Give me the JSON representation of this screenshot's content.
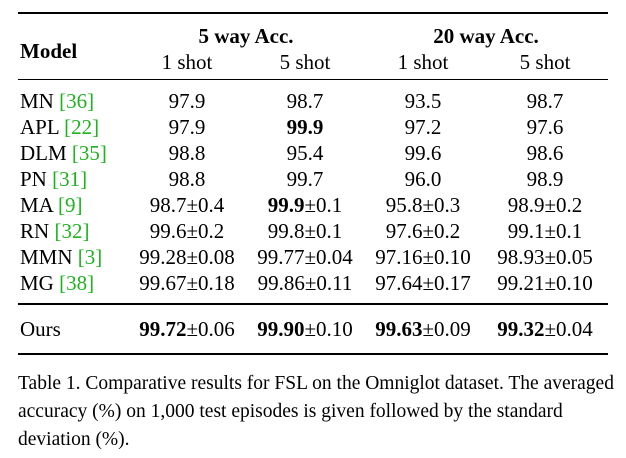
{
  "table": {
    "header": {
      "model": "Model",
      "group1": "5 way Acc.",
      "group2": "20 way Acc.",
      "subcols": [
        "1 shot",
        "5 shot",
        "1 shot",
        "5 shot"
      ]
    },
    "rows": [
      {
        "name": "MN",
        "ref": "36",
        "cells": [
          {
            "main": "97.9",
            "pm": "",
            "bold": false
          },
          {
            "main": "98.7",
            "pm": "",
            "bold": false
          },
          {
            "main": "93.5",
            "pm": "",
            "bold": false
          },
          {
            "main": "98.7",
            "pm": "",
            "bold": false
          }
        ]
      },
      {
        "name": "APL",
        "ref": "22",
        "cells": [
          {
            "main": "97.9",
            "pm": "",
            "bold": false
          },
          {
            "main": "99.9",
            "pm": "",
            "bold": true
          },
          {
            "main": "97.2",
            "pm": "",
            "bold": false
          },
          {
            "main": "97.6",
            "pm": "",
            "bold": false
          }
        ]
      },
      {
        "name": "DLM",
        "ref": "35",
        "cells": [
          {
            "main": "98.8",
            "pm": "",
            "bold": false
          },
          {
            "main": "95.4",
            "pm": "",
            "bold": false
          },
          {
            "main": "99.6",
            "pm": "",
            "bold": false
          },
          {
            "main": "98.6",
            "pm": "",
            "bold": false
          }
        ]
      },
      {
        "name": "PN",
        "ref": "31",
        "cells": [
          {
            "main": "98.8",
            "pm": "",
            "bold": false
          },
          {
            "main": "99.7",
            "pm": "",
            "bold": false
          },
          {
            "main": "96.0",
            "pm": "",
            "bold": false
          },
          {
            "main": "98.9",
            "pm": "",
            "bold": false
          }
        ]
      },
      {
        "name": "MA",
        "ref": "9",
        "cells": [
          {
            "main": "98.7",
            "pm": "±0.4",
            "bold": false
          },
          {
            "main": "99.9",
            "pm": "±0.1",
            "bold": true
          },
          {
            "main": "95.8",
            "pm": "±0.3",
            "bold": false
          },
          {
            "main": "98.9",
            "pm": "±0.2",
            "bold": false
          }
        ]
      },
      {
        "name": "RN",
        "ref": "32",
        "cells": [
          {
            "main": "99.6",
            "pm": "±0.2",
            "bold": false
          },
          {
            "main": "99.8",
            "pm": "±0.1",
            "bold": false
          },
          {
            "main": "97.6",
            "pm": "±0.2",
            "bold": false
          },
          {
            "main": "99.1",
            "pm": "±0.1",
            "bold": false
          }
        ]
      },
      {
        "name": "MMN",
        "ref": "3",
        "cells": [
          {
            "main": "99.28",
            "pm": "±0.08",
            "bold": false
          },
          {
            "main": "99.77",
            "pm": "±0.04",
            "bold": false
          },
          {
            "main": "97.16",
            "pm": "±0.10",
            "bold": false
          },
          {
            "main": "98.93",
            "pm": "±0.05",
            "bold": false
          }
        ]
      },
      {
        "name": "MG",
        "ref": "38",
        "cells": [
          {
            "main": "99.67",
            "pm": "±0.18",
            "bold": false
          },
          {
            "main": "99.86",
            "pm": "±0.11",
            "bold": false
          },
          {
            "main": "97.64",
            "pm": "±0.17",
            "bold": false
          },
          {
            "main": "99.21",
            "pm": "±0.10",
            "bold": false
          }
        ]
      }
    ],
    "ours": {
      "name": "Ours",
      "cells": [
        {
          "main": "99.72",
          "pm": "±0.06",
          "bold": true
        },
        {
          "main": "99.90",
          "pm": "±0.10",
          "bold": true
        },
        {
          "main": "99.63",
          "pm": "±0.09",
          "bold": true
        },
        {
          "main": "99.32",
          "pm": "±0.04",
          "bold": true
        }
      ]
    }
  },
  "caption": "Table 1. Comparative results for FSL on the Omniglot dataset. The averaged accuracy (%) on 1,000 test episodes is given followed by the standard deviation (%).",
  "colors": {
    "reference_link": "#1fb31f",
    "text": "#000000",
    "background": "#ffffff"
  }
}
